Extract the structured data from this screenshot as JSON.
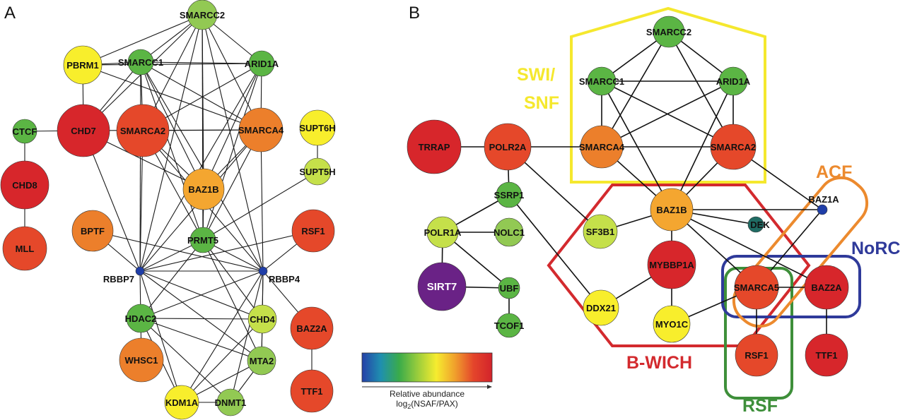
{
  "panels": {
    "a_letter": "A",
    "b_letter": "B"
  },
  "colors": {
    "red": "#d7262b",
    "red_orange": "#e5482a",
    "orange": "#ec7f2b",
    "light_orange": "#f4a630",
    "yellow": "#f8ee2c",
    "yellow_green": "#c5e04a",
    "light_green": "#92c953",
    "green": "#5bb544",
    "teal": "#1f6b63",
    "blue": "#1f3ea8",
    "purple": "#6a2286"
  },
  "legend": {
    "gradient": [
      "#2540a8",
      "#1f8fb0",
      "#3aab4a",
      "#9acd3c",
      "#f6ec2f",
      "#f0a02c",
      "#e4452b",
      "#d3232b"
    ],
    "caption": "Relative abundance",
    "log_prefix": "log",
    "log_sub": "2",
    "log_suffix": "(NSAF/PAX)"
  },
  "panel_a": {
    "nodes": {
      "SMARCC2": {
        "label": "SMARCC2",
        "color": "light_green"
      },
      "SMARCC1": {
        "label": "SMARCC1",
        "color": "green"
      },
      "ARID1A": {
        "label": "ARID1A",
        "color": "green"
      },
      "PBRM1": {
        "label": "PBRM1",
        "color": "yellow"
      },
      "CHD7": {
        "label": "CHD7",
        "color": "red"
      },
      "SMARCA2": {
        "label": "SMARCA2",
        "color": "red_orange"
      },
      "SMARCA4": {
        "label": "SMARCA4",
        "color": "orange"
      },
      "SUPT6H": {
        "label": "SUPT6H",
        "color": "yellow"
      },
      "SUPT5H": {
        "label": "SUPT5H",
        "color": "yellow_green"
      },
      "CTCF": {
        "label": "CTCF",
        "color": "green"
      },
      "CHD8": {
        "label": "CHD8",
        "color": "red"
      },
      "MLL": {
        "label": "MLL",
        "color": "red_orange"
      },
      "BAZ1B": {
        "label": "BAZ1B",
        "color": "light_orange"
      },
      "BPTF": {
        "label": "BPTF",
        "color": "orange"
      },
      "PRMT5": {
        "label": "PRMT5",
        "color": "green"
      },
      "RSF1": {
        "label": "RSF1",
        "color": "red_orange"
      },
      "RBBP7": {
        "label": "RBBP7",
        "color": "blue"
      },
      "RBBP4": {
        "label": "RBBP4",
        "color": "blue"
      },
      "HDAC2": {
        "label": "HDAC2",
        "color": "green"
      },
      "CHD4": {
        "label": "CHD4",
        "color": "yellow_green"
      },
      "BAZ2A": {
        "label": "BAZ2A",
        "color": "red_orange"
      },
      "WHSC1": {
        "label": "WHSC1",
        "color": "orange"
      },
      "MTA2": {
        "label": "MTA2",
        "color": "light_green"
      },
      "KDM1A": {
        "label": "KDM1A",
        "color": "yellow"
      },
      "DNMT1": {
        "label": "DNMT1",
        "color": "light_green"
      },
      "TTF1": {
        "label": "TTF1",
        "color": "red_orange"
      }
    }
  },
  "panel_b": {
    "nodes": {
      "SMARCC2": {
        "label": "SMARCC2",
        "color": "green"
      },
      "SMARCC1": {
        "label": "SMARCC1",
        "color": "green"
      },
      "ARID1A": {
        "label": "ARID1A",
        "color": "green"
      },
      "SMARCA4": {
        "label": "SMARCA4",
        "color": "orange"
      },
      "SMARCA2": {
        "label": "SMARCA2",
        "color": "red_orange"
      },
      "TRRAP": {
        "label": "TRRAP",
        "color": "red"
      },
      "POLR2A": {
        "label": "POLR2A",
        "color": "red_orange"
      },
      "SSRP1": {
        "label": "SSRP1",
        "color": "green"
      },
      "POLR1A": {
        "label": "POLR1A",
        "color": "yellow_green"
      },
      "NOLC1": {
        "label": "NOLC1",
        "color": "light_green"
      },
      "SIRT7": {
        "label": "SIRT7",
        "color": "purple"
      },
      "UBF": {
        "label": "UBF",
        "color": "green"
      },
      "TCOF1": {
        "label": "TCOF1",
        "color": "green"
      },
      "SF3B1": {
        "label": "SF3B1",
        "color": "yellow_green"
      },
      "BAZ1B": {
        "label": "BAZ1B",
        "color": "light_orange"
      },
      "BAZ1A": {
        "label": "BAZ1A",
        "color": "blue"
      },
      "DEK": {
        "label": "DEK",
        "color": "teal"
      },
      "DDX21": {
        "label": "DDX21",
        "color": "yellow"
      },
      "MYBBP1A": {
        "label": "MYBBP1A",
        "color": "red"
      },
      "MYO1C": {
        "label": "MYO1C",
        "color": "yellow"
      },
      "SMARCA5": {
        "label": "SMARCA5",
        "color": "red_orange"
      },
      "BAZ2A": {
        "label": "BAZ2A",
        "color": "red"
      },
      "RSF1": {
        "label": "RSF1",
        "color": "red_orange"
      },
      "TTF1": {
        "label": "TTF1",
        "color": "red"
      }
    },
    "groups": {
      "swisnf_line1": {
        "label": "SWI/",
        "color": "#f5e82e"
      },
      "swisnf_line2": {
        "label": "SNF",
        "color": "#f5e82e"
      },
      "acf": {
        "label": "ACF",
        "color": "#ec8a2e"
      },
      "norc": {
        "label": "NoRC",
        "color": "#2f3a9a"
      },
      "bwich": {
        "label": "B-WICH",
        "color": "#d32a2e"
      },
      "rsf": {
        "label": "RSF",
        "color": "#3e8f3a"
      }
    }
  }
}
